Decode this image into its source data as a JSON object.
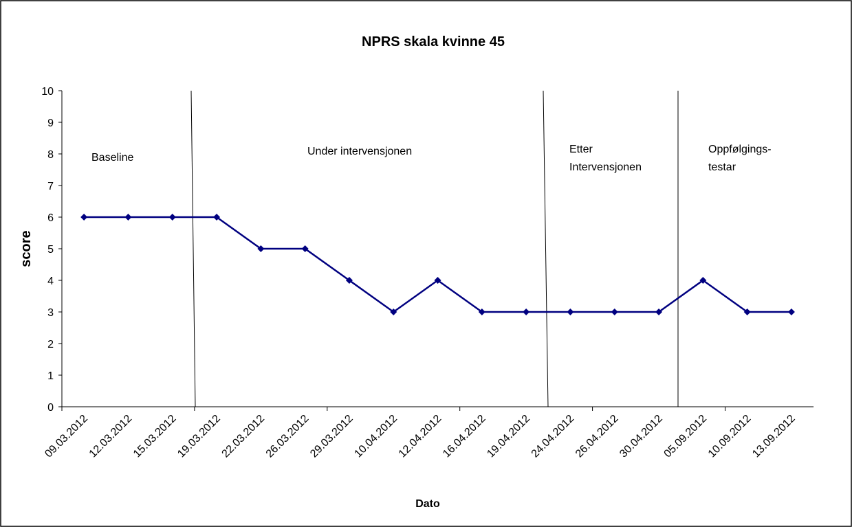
{
  "chart_data": {
    "type": "line",
    "title": "NPRS skala kvinne 45",
    "x_label": "Dato",
    "y_label": "score",
    "categories": [
      "09.03.2012",
      "12.03.2012",
      "15.03.2012",
      "19.03.2012",
      "22.03.2012",
      "26.03.2012",
      "29.03.2012",
      "10.04.2012",
      "12.04.2012",
      "16.04.2012",
      "19.04.2012",
      "24.04.2012",
      "26.04.2012",
      "30.04.2012",
      "05.09.2012",
      "10.09.2012",
      "13.09.2012"
    ],
    "series": [
      {
        "color": "#000080",
        "values": [
          6,
          6,
          6,
          6,
          5,
          5,
          4,
          3,
          4,
          3,
          3,
          3,
          3,
          3,
          4,
          3,
          3
        ]
      }
    ],
    "ylim": [
      0,
      10
    ],
    "yticks": [
      0,
      1,
      2,
      3,
      4,
      5,
      6,
      7,
      8,
      9,
      10
    ],
    "annotations": [
      {
        "lines": [
          "Baseline"
        ]
      },
      {
        "lines": [
          "Under intervensjonen"
        ]
      },
      {
        "lines": [
          "Etter",
          "Intervensjonen"
        ]
      },
      {
        "lines": [
          "Oppfølgings-",
          "testar"
        ]
      }
    ]
  }
}
